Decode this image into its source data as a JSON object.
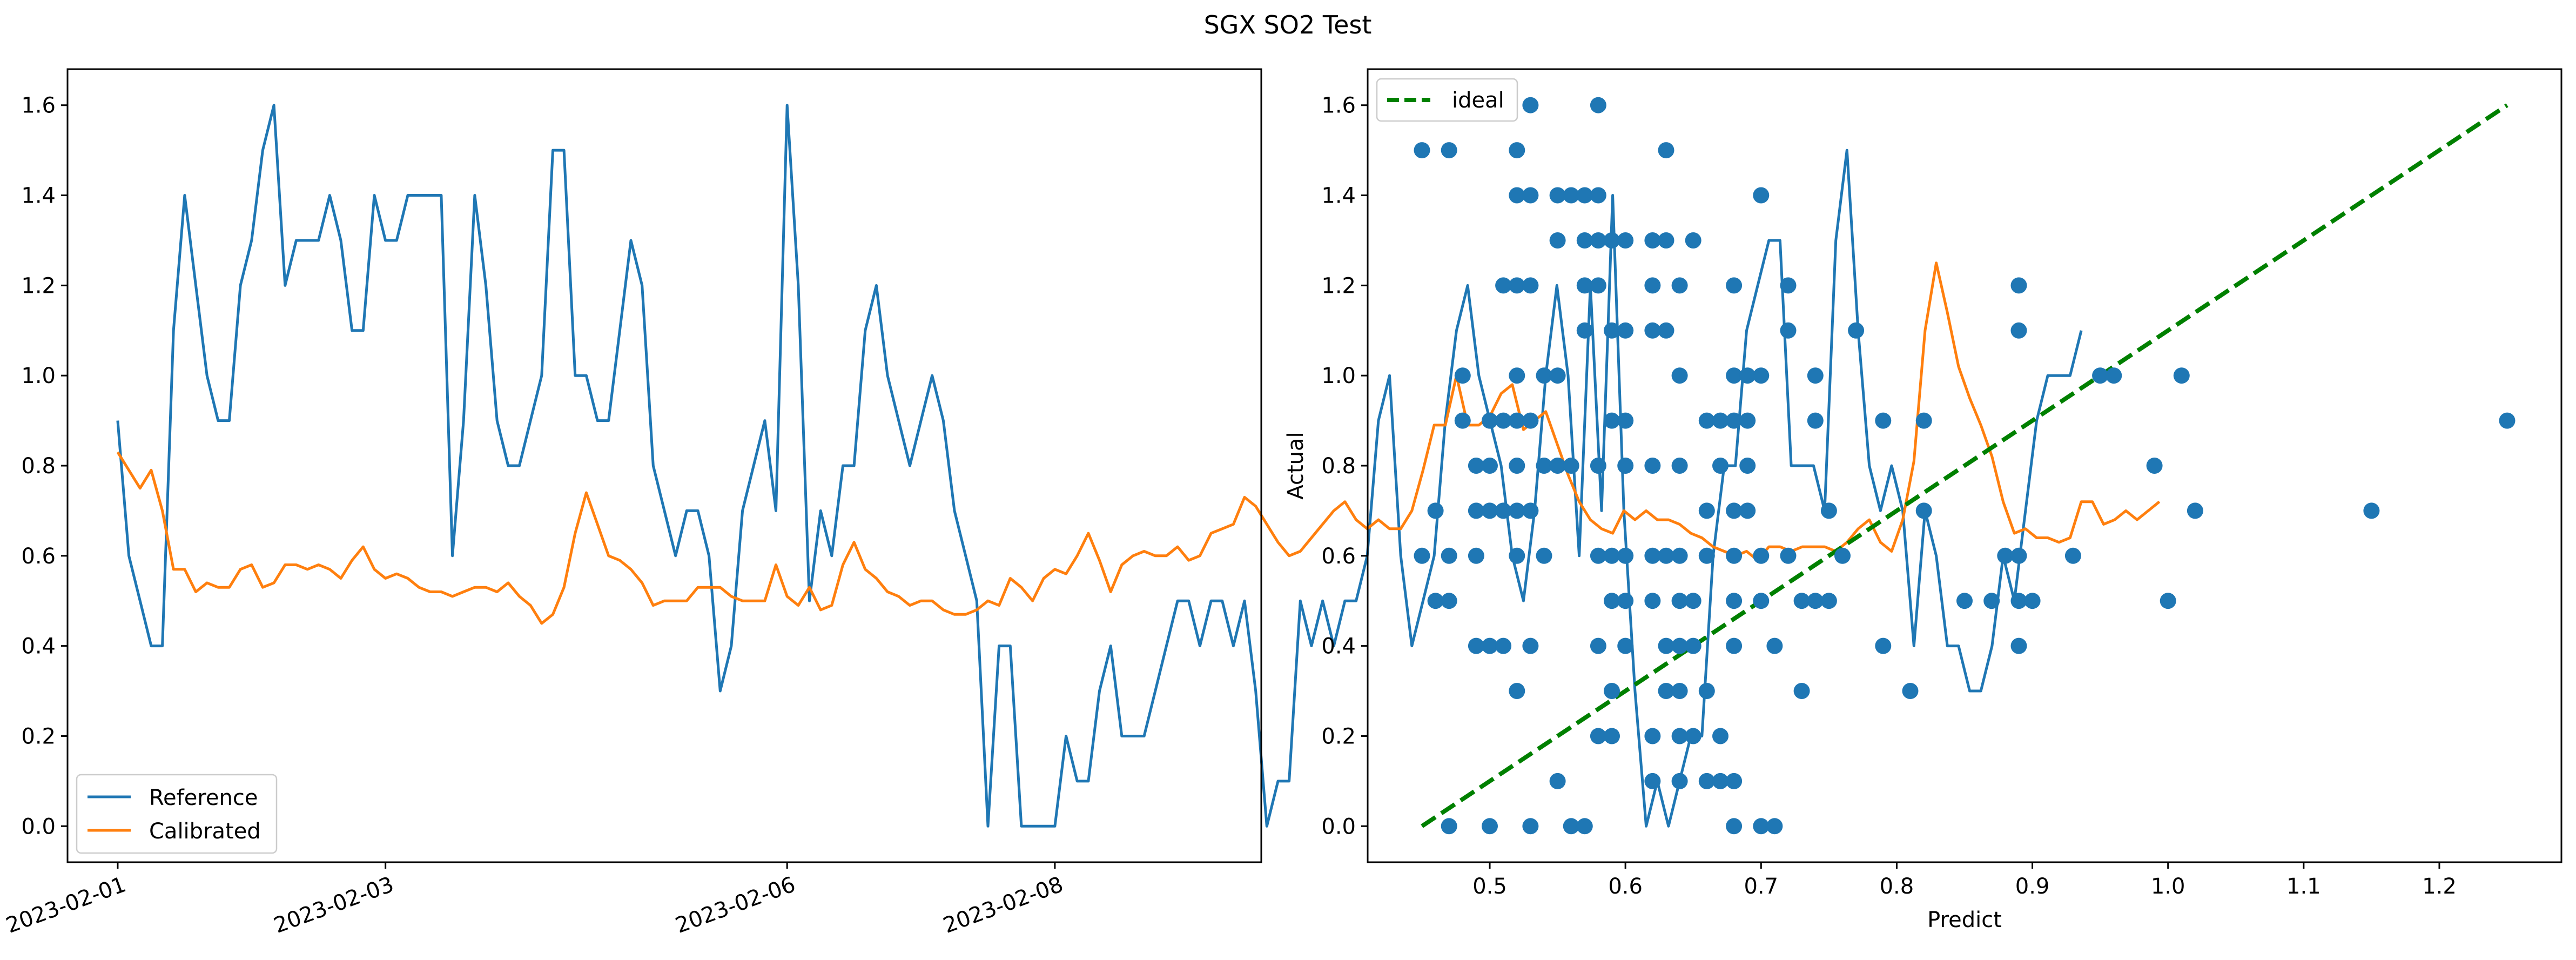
{
  "figure": {
    "title": "SGX SO2 Test"
  },
  "colors": {
    "reference": "#1f77b4",
    "calibrated": "#ff7f0e",
    "scatter": "#1f77b4",
    "ideal": "#008000"
  },
  "chart_data": [
    {
      "type": "line",
      "title": "",
      "xlabel": "",
      "ylabel": "",
      "x_axis": "time",
      "xlim": [
        "2023-01-31T15:00",
        "2023-02-09T13:00"
      ],
      "ylim": [
        -0.08,
        1.68
      ],
      "xticks": [
        "2023-02-01",
        "2023-02-03",
        "2023-02-06",
        "2023-02-08"
      ],
      "yticks": [
        "0.0",
        "0.2",
        "0.4",
        "0.6",
        "0.8",
        "1.0",
        "1.2",
        "1.4",
        "1.6"
      ],
      "legend_position": "lower left",
      "grid": false,
      "x_start": "2023-02-01T00:00",
      "x_step_hours": 2,
      "series": [
        {
          "name": "Reference",
          "values": [
            0.9,
            0.6,
            0.5,
            0.4,
            0.4,
            1.1,
            1.4,
            1.2,
            1.0,
            0.9,
            0.9,
            1.2,
            1.3,
            1.5,
            1.6,
            1.2,
            1.3,
            1.3,
            1.3,
            1.4,
            1.3,
            1.1,
            1.1,
            1.4,
            1.3,
            1.3,
            1.4,
            1.4,
            1.4,
            1.4,
            0.6,
            0.9,
            1.4,
            1.2,
            0.9,
            0.8,
            0.8,
            0.9,
            1.0,
            1.5,
            1.5,
            1.0,
            1.0,
            0.9,
            0.9,
            1.1,
            1.3,
            1.2,
            0.8,
            0.7,
            0.6,
            0.7,
            0.7,
            0.6,
            0.3,
            0.4,
            0.7,
            0.8,
            0.9,
            0.7,
            1.6,
            1.2,
            0.5,
            0.7,
            0.6,
            0.8,
            0.8,
            1.1,
            1.2,
            1.0,
            0.9,
            0.8,
            0.9,
            1.0,
            0.9,
            0.7,
            0.6,
            0.5,
            0.0,
            0.4,
            0.4,
            0.0,
            0.0,
            0.0,
            0.0,
            0.2,
            0.1,
            0.1,
            0.3,
            0.4,
            0.2,
            0.2,
            0.2,
            0.3,
            0.4,
            0.5,
            0.5,
            0.4,
            0.5,
            0.5,
            0.4,
            0.5,
            0.3,
            0.0,
            0.1,
            0.1,
            0.5,
            0.4,
            0.5,
            0.4,
            0.5,
            0.5,
            0.6,
            0.9,
            1.0,
            0.6,
            0.4,
            0.5,
            0.6,
            0.9,
            1.1,
            1.2,
            1.0,
            0.9,
            0.8,
            0.6,
            0.5,
            0.7,
            1.0,
            1.2,
            1.0,
            0.6,
            1.2,
            0.7,
            1.4,
            0.7,
            0.3,
            0.0,
            0.1,
            0.0,
            0.1,
            0.2,
            0.2,
            0.6,
            0.8,
            0.8,
            1.1,
            1.2,
            1.3,
            1.3,
            0.8,
            0.8,
            0.8,
            0.7,
            1.3,
            1.5,
            1.1,
            0.8,
            0.7,
            0.8,
            0.7,
            0.4,
            0.7,
            0.6,
            0.4,
            0.4,
            0.3,
            0.3,
            0.4,
            0.6,
            0.5,
            0.7,
            0.9,
            1.0,
            1.0,
            1.0,
            1.1
          ]
        },
        {
          "name": "Calibrated",
          "values": [
            0.83,
            0.79,
            0.75,
            0.79,
            0.7,
            0.57,
            0.57,
            0.52,
            0.54,
            0.53,
            0.53,
            0.57,
            0.58,
            0.53,
            0.54,
            0.58,
            0.58,
            0.57,
            0.58,
            0.57,
            0.55,
            0.59,
            0.62,
            0.57,
            0.55,
            0.56,
            0.55,
            0.53,
            0.52,
            0.52,
            0.51,
            0.52,
            0.53,
            0.53,
            0.52,
            0.54,
            0.51,
            0.49,
            0.45,
            0.47,
            0.53,
            0.65,
            0.74,
            0.67,
            0.6,
            0.59,
            0.57,
            0.54,
            0.49,
            0.5,
            0.5,
            0.5,
            0.53,
            0.53,
            0.53,
            0.51,
            0.5,
            0.5,
            0.5,
            0.58,
            0.51,
            0.49,
            0.53,
            0.48,
            0.49,
            0.58,
            0.63,
            0.57,
            0.55,
            0.52,
            0.51,
            0.49,
            0.5,
            0.5,
            0.48,
            0.47,
            0.47,
            0.48,
            0.5,
            0.49,
            0.55,
            0.53,
            0.5,
            0.55,
            0.57,
            0.56,
            0.6,
            0.65,
            0.59,
            0.52,
            0.58,
            0.6,
            0.61,
            0.6,
            0.6,
            0.62,
            0.59,
            0.6,
            0.65,
            0.66,
            0.67,
            0.73,
            0.71,
            0.67,
            0.63,
            0.6,
            0.61,
            0.64,
            0.67,
            0.7,
            0.72,
            0.68,
            0.66,
            0.68,
            0.66,
            0.66,
            0.7,
            0.79,
            0.89,
            0.89,
            1.0,
            0.89,
            0.89,
            0.91,
            0.96,
            0.98,
            0.88,
            0.9,
            0.92,
            0.85,
            0.78,
            0.72,
            0.68,
            0.66,
            0.65,
            0.7,
            0.68,
            0.7,
            0.68,
            0.68,
            0.67,
            0.65,
            0.64,
            0.62,
            0.61,
            0.6,
            0.61,
            0.59,
            0.62,
            0.62,
            0.61,
            0.62,
            0.62,
            0.62,
            0.61,
            0.63,
            0.66,
            0.68,
            0.63,
            0.61,
            0.68,
            0.81,
            1.1,
            1.25,
            1.14,
            1.02,
            0.95,
            0.89,
            0.82,
            0.72,
            0.65,
            0.66,
            0.64,
            0.64,
            0.63,
            0.64,
            0.72,
            0.72,
            0.67,
            0.68,
            0.7,
            0.68,
            0.7,
            0.72
          ]
        }
      ]
    },
    {
      "type": "scatter",
      "title": "",
      "xlabel": "Predict",
      "ylabel": "Actual",
      "xlim": [
        0.41,
        1.29
      ],
      "ylim": [
        -0.08,
        1.68
      ],
      "xticks": [
        "0.5",
        "0.6",
        "0.7",
        "0.8",
        "0.9",
        "1.0",
        "1.1",
        "1.2"
      ],
      "yticks": [
        "0.0",
        "0.2",
        "0.4",
        "0.6",
        "0.8",
        "1.0",
        "1.2",
        "1.4",
        "1.6"
      ],
      "legend_position": "upper left",
      "grid": false,
      "ideal_line": {
        "name": "ideal",
        "x": [
          0.45,
          1.25
        ],
        "y": [
          0.0,
          1.6
        ],
        "style": "dashed"
      },
      "series": [
        {
          "points": [
            [
              0.45,
              1.5
            ],
            [
              0.47,
              1.5
            ],
            [
              0.53,
              1.6
            ],
            [
              0.58,
              1.6
            ],
            [
              0.52,
              1.4
            ],
            [
              0.53,
              1.4
            ],
            [
              0.55,
              1.4
            ],
            [
              0.56,
              1.4
            ],
            [
              0.57,
              1.4
            ],
            [
              0.58,
              1.4
            ],
            [
              0.7,
              1.4
            ],
            [
              0.52,
              1.5
            ],
            [
              0.63,
              1.5
            ],
            [
              0.55,
              1.3
            ],
            [
              0.57,
              1.3
            ],
            [
              0.58,
              1.3
            ],
            [
              0.59,
              1.3
            ],
            [
              0.6,
              1.3
            ],
            [
              0.62,
              1.3
            ],
            [
              0.63,
              1.3
            ],
            [
              0.65,
              1.3
            ],
            [
              0.51,
              1.2
            ],
            [
              0.52,
              1.2
            ],
            [
              0.53,
              1.2
            ],
            [
              0.57,
              1.2
            ],
            [
              0.58,
              1.2
            ],
            [
              0.62,
              1.2
            ],
            [
              0.64,
              1.2
            ],
            [
              0.68,
              1.2
            ],
            [
              0.72,
              1.2
            ],
            [
              0.89,
              1.2
            ],
            [
              0.57,
              1.1
            ],
            [
              0.59,
              1.1
            ],
            [
              0.6,
              1.1
            ],
            [
              0.62,
              1.1
            ],
            [
              0.63,
              1.1
            ],
            [
              0.72,
              1.1
            ],
            [
              0.77,
              1.1
            ],
            [
              0.89,
              1.1
            ],
            [
              0.48,
              1.0
            ],
            [
              0.52,
              1.0
            ],
            [
              0.54,
              1.0
            ],
            [
              0.55,
              1.0
            ],
            [
              0.64,
              1.0
            ],
            [
              0.68,
              1.0
            ],
            [
              0.69,
              1.0
            ],
            [
              0.7,
              1.0
            ],
            [
              0.74,
              1.0
            ],
            [
              0.96,
              1.0
            ],
            [
              1.01,
              1.0
            ],
            [
              0.95,
              1.0
            ],
            [
              0.48,
              0.9
            ],
            [
              0.5,
              0.9
            ],
            [
              0.51,
              0.9
            ],
            [
              0.52,
              0.9
            ],
            [
              0.53,
              0.9
            ],
            [
              0.59,
              0.9
            ],
            [
              0.6,
              0.9
            ],
            [
              0.66,
              0.9
            ],
            [
              0.67,
              0.9
            ],
            [
              0.68,
              0.9
            ],
            [
              0.69,
              0.9
            ],
            [
              0.74,
              0.9
            ],
            [
              0.79,
              0.9
            ],
            [
              0.82,
              0.9
            ],
            [
              1.25,
              0.9
            ],
            [
              0.49,
              0.8
            ],
            [
              0.5,
              0.8
            ],
            [
              0.52,
              0.8
            ],
            [
              0.54,
              0.8
            ],
            [
              0.55,
              0.8
            ],
            [
              0.56,
              0.8
            ],
            [
              0.58,
              0.8
            ],
            [
              0.6,
              0.8
            ],
            [
              0.62,
              0.8
            ],
            [
              0.64,
              0.8
            ],
            [
              0.67,
              0.8
            ],
            [
              0.69,
              0.8
            ],
            [
              0.99,
              0.8
            ],
            [
              0.46,
              0.7
            ],
            [
              0.49,
              0.7
            ],
            [
              0.5,
              0.7
            ],
            [
              0.51,
              0.7
            ],
            [
              0.52,
              0.7
            ],
            [
              0.53,
              0.7
            ],
            [
              0.66,
              0.7
            ],
            [
              0.68,
              0.7
            ],
            [
              0.69,
              0.7
            ],
            [
              0.75,
              0.7
            ],
            [
              0.82,
              0.7
            ],
            [
              1.02,
              0.7
            ],
            [
              1.15,
              0.7
            ],
            [
              0.45,
              0.6
            ],
            [
              0.47,
              0.6
            ],
            [
              0.49,
              0.6
            ],
            [
              0.52,
              0.6
            ],
            [
              0.54,
              0.6
            ],
            [
              0.58,
              0.6
            ],
            [
              0.59,
              0.6
            ],
            [
              0.6,
              0.6
            ],
            [
              0.62,
              0.6
            ],
            [
              0.63,
              0.6
            ],
            [
              0.64,
              0.6
            ],
            [
              0.66,
              0.6
            ],
            [
              0.68,
              0.6
            ],
            [
              0.7,
              0.6
            ],
            [
              0.72,
              0.6
            ],
            [
              0.76,
              0.6
            ],
            [
              0.88,
              0.6
            ],
            [
              0.89,
              0.6
            ],
            [
              0.93,
              0.6
            ],
            [
              0.46,
              0.5
            ],
            [
              0.47,
              0.5
            ],
            [
              0.59,
              0.5
            ],
            [
              0.6,
              0.5
            ],
            [
              0.62,
              0.5
            ],
            [
              0.64,
              0.5
            ],
            [
              0.65,
              0.5
            ],
            [
              0.68,
              0.5
            ],
            [
              0.7,
              0.5
            ],
            [
              0.73,
              0.5
            ],
            [
              0.74,
              0.5
            ],
            [
              0.75,
              0.5
            ],
            [
              0.85,
              0.5
            ],
            [
              0.87,
              0.5
            ],
            [
              0.89,
              0.5
            ],
            [
              0.9,
              0.5
            ],
            [
              1.0,
              0.5
            ],
            [
              0.49,
              0.4
            ],
            [
              0.5,
              0.4
            ],
            [
              0.51,
              0.4
            ],
            [
              0.53,
              0.4
            ],
            [
              0.58,
              0.4
            ],
            [
              0.6,
              0.4
            ],
            [
              0.63,
              0.4
            ],
            [
              0.64,
              0.4
            ],
            [
              0.65,
              0.4
            ],
            [
              0.68,
              0.4
            ],
            [
              0.71,
              0.4
            ],
            [
              0.79,
              0.4
            ],
            [
              0.89,
              0.4
            ],
            [
              0.52,
              0.3
            ],
            [
              0.59,
              0.3
            ],
            [
              0.63,
              0.3
            ],
            [
              0.64,
              0.3
            ],
            [
              0.66,
              0.3
            ],
            [
              0.73,
              0.3
            ],
            [
              0.81,
              0.3
            ],
            [
              0.58,
              0.2
            ],
            [
              0.59,
              0.2
            ],
            [
              0.62,
              0.2
            ],
            [
              0.64,
              0.2
            ],
            [
              0.65,
              0.2
            ],
            [
              0.67,
              0.2
            ],
            [
              0.55,
              0.1
            ],
            [
              0.62,
              0.1
            ],
            [
              0.64,
              0.1
            ],
            [
              0.66,
              0.1
            ],
            [
              0.67,
              0.1
            ],
            [
              0.68,
              0.1
            ],
            [
              0.47,
              0.0
            ],
            [
              0.5,
              0.0
            ],
            [
              0.53,
              0.0
            ],
            [
              0.56,
              0.0
            ],
            [
              0.57,
              0.0
            ],
            [
              0.68,
              0.0
            ],
            [
              0.7,
              0.0
            ],
            [
              0.71,
              0.0
            ]
          ]
        }
      ]
    }
  ]
}
